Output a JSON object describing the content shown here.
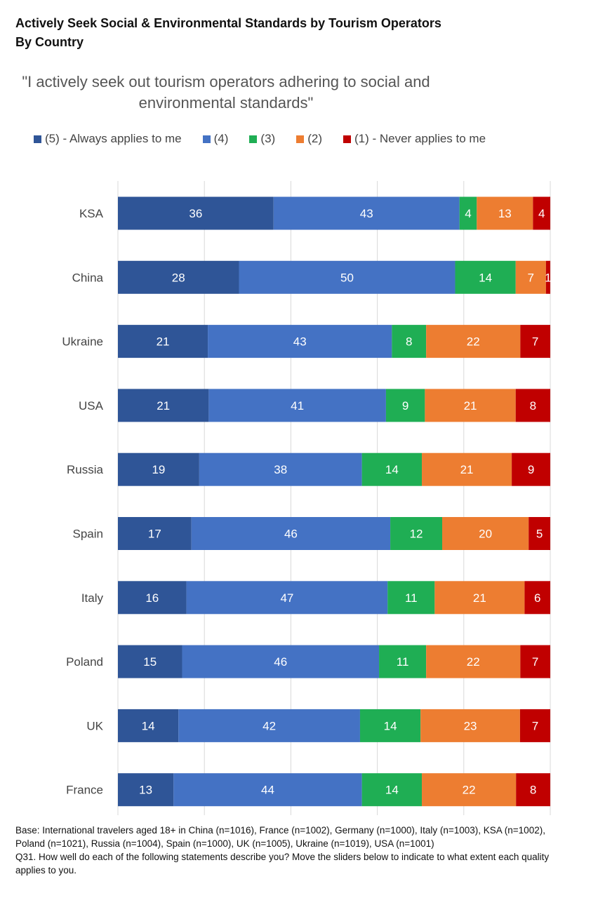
{
  "title_line1": "Actively Seek Social & Environmental Standards by Tourism Operators",
  "title_line2": "By Country",
  "chart_data": {
    "type": "bar",
    "orientation": "horizontal",
    "stacked": true,
    "title": "\"I actively seek out tourism operators adhering to social and environmental standards\"",
    "categories": [
      "KSA",
      "China",
      "Ukraine",
      "USA",
      "Russia",
      "Spain",
      "Italy",
      "Poland",
      "UK",
      "France"
    ],
    "series": [
      {
        "name": "(5) - Always applies to me",
        "color": "#2f5597",
        "values": [
          36,
          28,
          21,
          21,
          19,
          17,
          16,
          15,
          14,
          13
        ]
      },
      {
        "name": "(4)",
        "color": "#4472c4",
        "values": [
          43,
          50,
          43,
          41,
          38,
          46,
          47,
          46,
          42,
          44
        ]
      },
      {
        "name": "(3)",
        "color": "#1fae54",
        "values": [
          4,
          14,
          8,
          9,
          14,
          12,
          11,
          11,
          14,
          14
        ]
      },
      {
        "name": "(2)",
        "color": "#ed7d31",
        "values": [
          13,
          7,
          22,
          21,
          21,
          20,
          21,
          22,
          23,
          22
        ]
      },
      {
        "name": "(1) - Never applies to me",
        "color": "#c00000",
        "values": [
          4,
          1,
          7,
          8,
          9,
          5,
          6,
          7,
          7,
          8
        ]
      }
    ],
    "xlim": [
      0,
      100
    ],
    "grid": true,
    "legend": "top"
  },
  "footnote": {
    "base": "Base: International travelers aged 18+ in China (n=1016), France (n=1002), Germany (n=1000), Italy (n=1003), KSA (n=1002), Poland (n=1021), Russia (n=1004), Spain (n=1000), UK (n=1005), Ukraine (n=1019), USA (n=1001)",
    "question": "Q31. How well do each of the following statements describe you? Move the sliders below to indicate to what extent each quality applies to you."
  }
}
